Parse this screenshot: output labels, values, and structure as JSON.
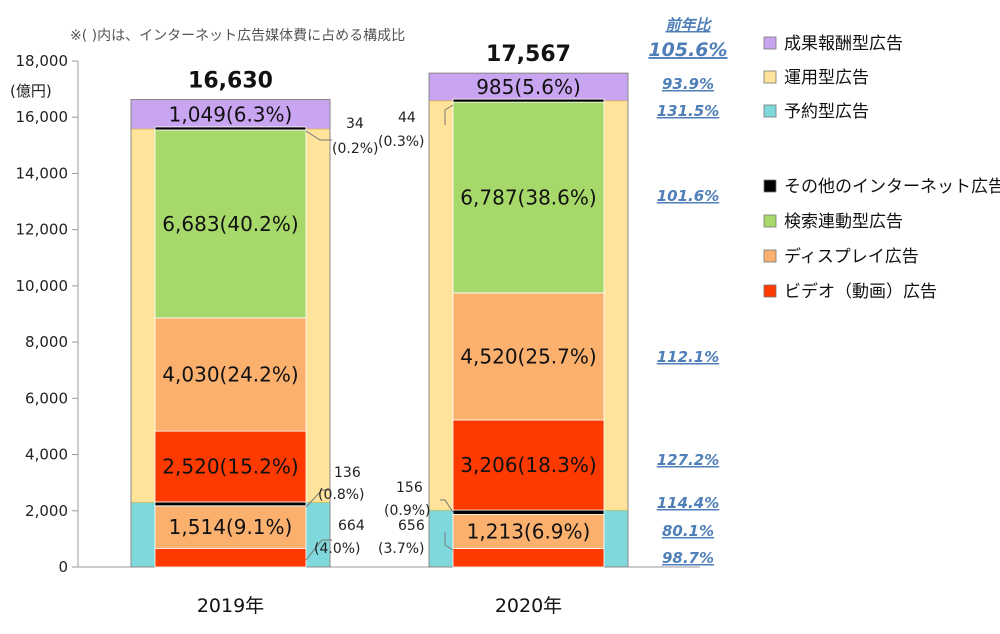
{
  "note": "※( )内は、インターネット広告媒体費に占める構成比",
  "yoy_header": "前年比",
  "chart_data": {
    "type": "bar",
    "subtype": "nested-stacked",
    "yunit": "(億円)",
    "ylim": [
      0,
      18000
    ],
    "yticks": [
      0,
      2000,
      4000,
      6000,
      8000,
      10000,
      12000,
      14000,
      16000,
      18000
    ],
    "ytick_labels": [
      "0",
      "2,000",
      "4,000",
      "6,000",
      "8,000",
      "10,000",
      "12,000",
      "14,000",
      "16,000",
      "18,000"
    ],
    "categories": [
      "2019年",
      "2020年"
    ],
    "totals": [
      16630,
      17567
    ],
    "total_labels": [
      "16,630",
      "17,567"
    ],
    "outer_series": [
      {
        "key": "yoyaku",
        "name": "予約型広告",
        "color": "#7fd9dc",
        "values": [
          2300,
          2020
        ]
      },
      {
        "key": "unyo",
        "name": "運用型広告",
        "color": "#ffe39b",
        "values": [
          13281,
          14562
        ]
      },
      {
        "key": "seika",
        "name": "成果報酬型広告",
        "color": "#c9a4f0",
        "values": [
          1049,
          985
        ],
        "labels": [
          "1,049(6.3%)",
          "985(5.6%)"
        ]
      }
    ],
    "inner_series": [
      {
        "key": "video",
        "name": "ビデオ（動画）広告",
        "color": "#ff3a00",
        "values": [
          664,
          656
        ]
      },
      {
        "key": "display",
        "name": "ディスプレイ広告",
        "color": "#fbb06e",
        "values": [
          1514,
          1213
        ],
        "labels": [
          "1,514(9.1%)",
          "1,213(6.9%)"
        ]
      },
      {
        "key": "other",
        "name": "その他のインターネット広告",
        "color": "#000000",
        "values": [
          136,
          156
        ]
      },
      {
        "key": "video",
        "name": "ビデオ（動画）広告",
        "color": "#ff3a00",
        "values": [
          2520,
          3206
        ],
        "labels": [
          "2,520(15.2%)",
          "3,206(18.3%)"
        ]
      },
      {
        "key": "display",
        "name": "ディスプレイ広告",
        "color": "#fbb06e",
        "values": [
          4030,
          4520
        ],
        "labels": [
          "4,030(24.2%)",
          "4,520(25.7%)"
        ]
      },
      {
        "key": "search",
        "name": "検索連動型広告",
        "color": "#a6d86a",
        "values": [
          6683,
          6787
        ],
        "labels": [
          "6,683(40.2%)",
          "6,787(38.6%)"
        ]
      },
      {
        "key": "other",
        "name": "その他のインターネット広告",
        "color": "#000000",
        "values": [
          34,
          44
        ]
      }
    ],
    "callouts": {
      "y2019": [
        {
          "value": "34",
          "pct": "(0.2%)"
        },
        {
          "value": "136",
          "pct": "(0.8%)"
        },
        {
          "value": "664",
          "pct": "(4.0%)"
        }
      ],
      "y2020": [
        {
          "value": "44",
          "pct": "(0.3%)"
        },
        {
          "value": "156",
          "pct": "(0.9%)"
        },
        {
          "value": "656",
          "pct": "(3.7%)"
        }
      ]
    },
    "yoy": [
      {
        "label": "105.6%",
        "big": true
      },
      {
        "label": "93.9%",
        "big": false
      },
      {
        "label": "131.5%",
        "big": false
      },
      {
        "label": "101.6%",
        "big": false
      },
      {
        "label": "112.1%",
        "big": false
      },
      {
        "label": "127.2%",
        "big": false
      },
      {
        "label": "114.4%",
        "big": false
      },
      {
        "label": "80.1%",
        "big": false
      },
      {
        "label": "98.7%",
        "big": false
      }
    ],
    "legend": {
      "placement": "right",
      "group1": [
        {
          "name": "成果報酬型広告",
          "color": "#c9a4f0"
        },
        {
          "name": "運用型広告",
          "color": "#ffe39b"
        },
        {
          "name": "予約型広告",
          "color": "#7fd9dc"
        }
      ],
      "group2": [
        {
          "name": "その他のインターネット広告",
          "color": "#000000"
        },
        {
          "name": "検索連動型広告",
          "color": "#a6d86a"
        },
        {
          "name": "ディスプレイ広告",
          "color": "#fbb06e"
        },
        {
          "name": "ビデオ（動画）広告",
          "color": "#ff3a00"
        }
      ]
    }
  }
}
